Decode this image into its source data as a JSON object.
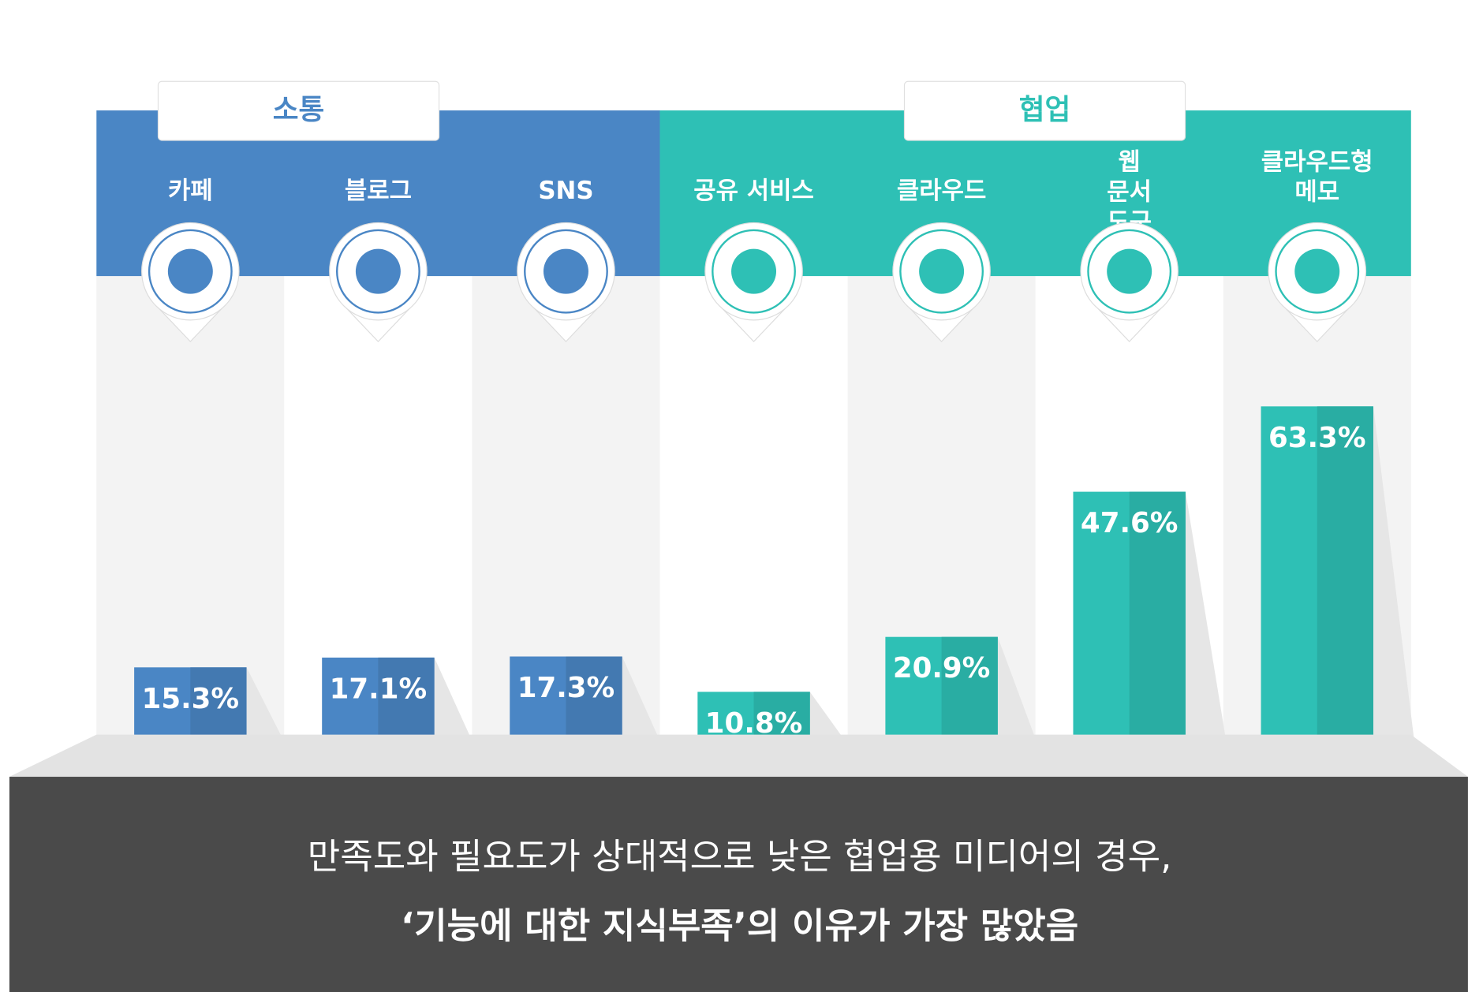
{
  "chart_data": {
    "type": "bar",
    "series": [
      {
        "name": "소통",
        "color": "#4a86c5",
        "categories": [
          "카페",
          "블로그",
          "SNS"
        ],
        "values": [
          15.3,
          17.1,
          17.3
        ],
        "value_labels": [
          "15.3%",
          "17.1%",
          "17.3%"
        ]
      },
      {
        "name": "협업",
        "color": "#2ec0b5",
        "categories": [
          "공유 서비스",
          "클라우드",
          "웹 문서 도구",
          "클라우드형 메모"
        ],
        "values": [
          10.8,
          20.9,
          47.6,
          63.3
        ],
        "value_labels": [
          "10.8%",
          "20.9%",
          "47.6%",
          "63.3%"
        ]
      }
    ]
  },
  "footer": {
    "lines": [
      "만족도와 필요도가 상대적으로 낮은 협업용 미디어의 경우,",
      "‘기능에 대한 지식부족’의 이유가 가장 많았음"
    ]
  }
}
